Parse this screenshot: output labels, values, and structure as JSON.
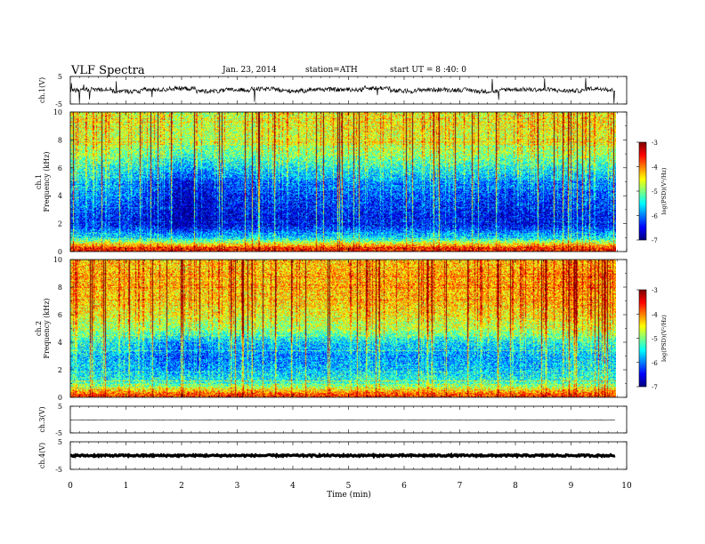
{
  "header": {
    "title": "VLF  Spectra",
    "date": "Jan.  23,  2014",
    "station": "station=ATH",
    "start": "start  UT  =   8  :40:  0"
  },
  "colors": {
    "jet": [
      "#00007f",
      "#0000ff",
      "#007fff",
      "#00ffff",
      "#7fff7f",
      "#ffff00",
      "#ff7f00",
      "#ff0000",
      "#7f0000"
    ],
    "trace": "#000000"
  },
  "chart_data": [
    {
      "type": "line",
      "panel": "ch1-waveform",
      "ylabel": "ch.1(V)",
      "ylim": [
        -5,
        5
      ],
      "yticks": [
        "5",
        "-5"
      ],
      "x": [
        0,
        0.5,
        1,
        1.5,
        2,
        2.5,
        3,
        3.5,
        4,
        4.5,
        5,
        5.5,
        6,
        6.5,
        7,
        7.5,
        8,
        8.5,
        9,
        9.5,
        9.8
      ],
      "values": [
        0.0,
        0.3,
        -0.4,
        0.2,
        0.6,
        -0.3,
        0.1,
        0.4,
        -0.2,
        0.3,
        0.2,
        0.8,
        -0.3,
        0.2,
        0.1,
        -0.4,
        0.3,
        0.2,
        -0.2,
        0.6,
        0.0
      ]
    },
    {
      "type": "heatmap",
      "panel": "ch1-spectrogram",
      "ylabel": "ch.1\nFrequency (kHz)",
      "ylim": [
        0,
        10
      ],
      "yticks": [
        "0",
        "2",
        "4",
        "6",
        "8",
        "10"
      ],
      "colorbar": {
        "label": "log(PSD)(V²/Hz)",
        "range": [
          -7,
          -3
        ],
        "ticks": [
          "-3",
          "-4",
          "-5",
          "-6",
          "-7"
        ]
      },
      "x": [
        0,
        1,
        2,
        3,
        4,
        5,
        6,
        7,
        8,
        9,
        9.8
      ],
      "freq_kHz": [
        0.25,
        1,
        2,
        3,
        4,
        5,
        6,
        7,
        8,
        9,
        9.75
      ],
      "z": [
        [
          -3.6,
          -3.6,
          -3.6,
          -3.6,
          -3.6,
          -3.6,
          -3.6,
          -3.6,
          -3.6,
          -3.6,
          -3.6
        ],
        [
          -5.5,
          -5.6,
          -5.8,
          -5.6,
          -5.7,
          -5.6,
          -5.6,
          -5.6,
          -5.7,
          -5.6,
          -5.6
        ],
        [
          -6.4,
          -6.5,
          -6.9,
          -6.6,
          -6.6,
          -6.5,
          -6.5,
          -6.5,
          -6.7,
          -6.5,
          -6.5
        ],
        [
          -6.2,
          -6.3,
          -6.9,
          -6.5,
          -6.5,
          -6.4,
          -6.4,
          -6.4,
          -6.6,
          -6.4,
          -6.4
        ],
        [
          -5.9,
          -6.0,
          -6.8,
          -6.4,
          -6.3,
          -6.2,
          -6.2,
          -6.2,
          -6.4,
          -6.2,
          -6.2
        ],
        [
          -5.6,
          -5.8,
          -6.6,
          -6.1,
          -6.0,
          -5.9,
          -5.9,
          -5.9,
          -6.0,
          -5.9,
          -5.9
        ],
        [
          -5.3,
          -5.4,
          -5.9,
          -5.6,
          -5.5,
          -5.4,
          -5.4,
          -5.4,
          -5.5,
          -5.4,
          -5.4
        ],
        [
          -4.9,
          -5.0,
          -5.3,
          -5.1,
          -5.0,
          -4.9,
          -4.9,
          -4.9,
          -5.0,
          -4.9,
          -4.9
        ],
        [
          -4.7,
          -4.7,
          -4.9,
          -4.8,
          -4.7,
          -4.6,
          -4.6,
          -4.7,
          -4.7,
          -4.6,
          -4.6
        ],
        [
          -4.6,
          -4.6,
          -4.8,
          -4.7,
          -4.6,
          -4.5,
          -4.5,
          -4.6,
          -4.6,
          -4.5,
          -4.5
        ],
        [
          -4.6,
          -4.6,
          -4.8,
          -4.7,
          -4.6,
          -4.5,
          -4.5,
          -4.6,
          -4.6,
          -4.5,
          -4.5
        ]
      ]
    },
    {
      "type": "heatmap",
      "panel": "ch2-spectrogram",
      "ylabel": "ch.2\nFrequency (kHz)",
      "ylim": [
        0,
        10
      ],
      "yticks": [
        "0",
        "2",
        "4",
        "6",
        "8",
        "10"
      ],
      "colorbar": {
        "label": "log(PSD)(V²/Hz)",
        "range": [
          -7,
          -3
        ],
        "ticks": [
          "-3",
          "-4",
          "-5",
          "-6",
          "-7"
        ]
      },
      "x": [
        0,
        1,
        2,
        3,
        4,
        5,
        6,
        7,
        8,
        9,
        9.8
      ],
      "freq_kHz": [
        0.25,
        1,
        2,
        3,
        4,
        5,
        6,
        7,
        8,
        9,
        9.75
      ],
      "z": [
        [
          -3.8,
          -3.8,
          -3.8,
          -3.8,
          -3.8,
          -3.8,
          -3.8,
          -3.8,
          -3.8,
          -3.8,
          -3.8
        ],
        [
          -5.2,
          -5.3,
          -5.3,
          -5.3,
          -5.3,
          -5.2,
          -5.2,
          -5.2,
          -5.3,
          -5.2,
          -5.2
        ],
        [
          -5.6,
          -5.7,
          -6.0,
          -5.8,
          -5.8,
          -5.7,
          -5.7,
          -5.7,
          -5.8,
          -5.6,
          -5.6
        ],
        [
          -5.6,
          -5.8,
          -6.3,
          -6.0,
          -6.0,
          -5.9,
          -5.9,
          -5.9,
          -5.9,
          -5.7,
          -5.7
        ],
        [
          -5.3,
          -5.5,
          -6.0,
          -5.7,
          -5.7,
          -5.6,
          -5.6,
          -5.6,
          -5.6,
          -5.4,
          -5.4
        ],
        [
          -4.8,
          -4.9,
          -5.0,
          -4.9,
          -4.9,
          -4.8,
          -4.8,
          -4.8,
          -4.8,
          -4.7,
          -4.7
        ],
        [
          -4.5,
          -4.6,
          -4.6,
          -4.6,
          -4.6,
          -4.5,
          -4.5,
          -4.5,
          -4.5,
          -4.4,
          -4.4
        ],
        [
          -4.3,
          -4.4,
          -4.4,
          -4.4,
          -4.4,
          -4.3,
          -4.3,
          -4.3,
          -4.3,
          -4.2,
          -4.2
        ],
        [
          -4.2,
          -4.3,
          -4.3,
          -4.3,
          -4.3,
          -4.2,
          -4.2,
          -4.2,
          -4.2,
          -4.1,
          -4.1
        ],
        [
          -4.2,
          -4.3,
          -4.3,
          -4.3,
          -4.3,
          -4.2,
          -4.2,
          -4.2,
          -4.2,
          -4.1,
          -4.1
        ],
        [
          -4.3,
          -4.3,
          -4.4,
          -4.3,
          -4.3,
          -4.3,
          -4.3,
          -4.3,
          -4.3,
          -4.2,
          -4.2
        ]
      ]
    },
    {
      "type": "line",
      "panel": "ch3-waveform",
      "ylabel": "ch.3(V)",
      "ylim": [
        -5,
        5
      ],
      "yticks": [
        "5",
        "-5"
      ],
      "x": [
        0,
        2,
        4,
        6,
        8,
        9.8
      ],
      "values": [
        -0.2,
        -0.2,
        -0.2,
        -0.2,
        -0.2,
        -0.2
      ]
    },
    {
      "type": "line",
      "panel": "ch4-waveform",
      "ylabel": "ch.4(V)",
      "ylim": [
        -5,
        5
      ],
      "yticks": [
        "5",
        "-5"
      ],
      "x": [
        0,
        2,
        4,
        6,
        8,
        9.8
      ],
      "values": [
        0.0,
        0.0,
        0.0,
        0.0,
        0.0,
        0.0
      ]
    }
  ],
  "xaxis": {
    "label": "Time  (min)",
    "ticks": [
      "0",
      "1",
      "2",
      "3",
      "4",
      "5",
      "6",
      "7",
      "8",
      "9",
      "10"
    ],
    "range": [
      0,
      10
    ]
  }
}
